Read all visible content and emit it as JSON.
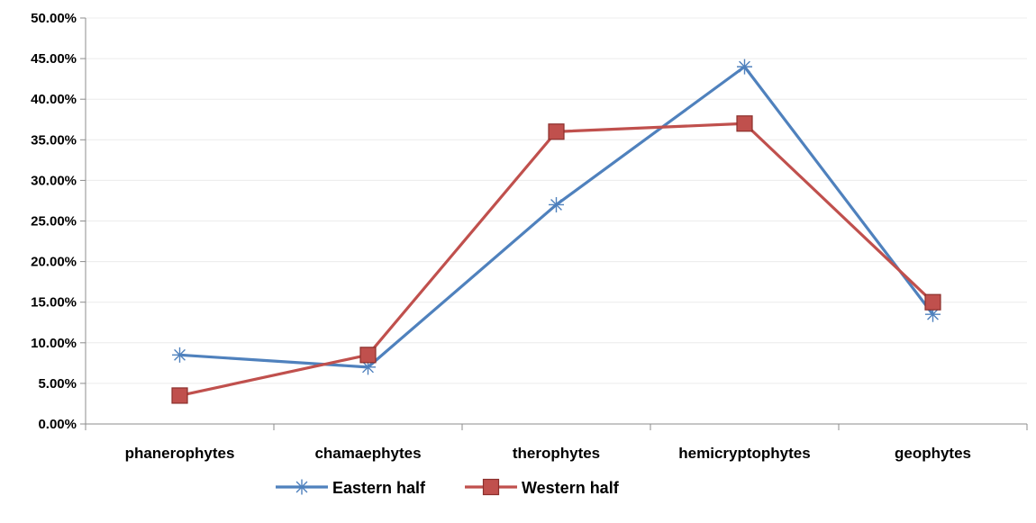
{
  "chart_data": {
    "type": "line",
    "title": "",
    "xlabel": "",
    "ylabel": "",
    "categories": [
      "phanerophytes",
      "chamaephytes",
      "therophytes",
      "hemicryptophytes",
      "geophytes"
    ],
    "ylim": [
      0,
      50
    ],
    "y_ticks": [
      0,
      5,
      10,
      15,
      20,
      25,
      30,
      35,
      40,
      45,
      50
    ],
    "y_tick_labels": [
      "0.00%",
      "5.00%",
      "10.00%",
      "15.00%",
      "20.00%",
      "25.00%",
      "30.00%",
      "35.00%",
      "40.00%",
      "45.00%",
      "50.00%"
    ],
    "grid": "horizontal",
    "legend": "bottom",
    "series": [
      {
        "name": "Eastern half",
        "values": [
          8.5,
          7.0,
          27.0,
          44.0,
          13.5
        ],
        "color": "#4f81bd",
        "marker": "asterisk"
      },
      {
        "name": "Western half",
        "values": [
          3.5,
          8.5,
          36.0,
          37.0,
          15.0
        ],
        "color": "#c0504d",
        "marker": "square"
      }
    ]
  }
}
